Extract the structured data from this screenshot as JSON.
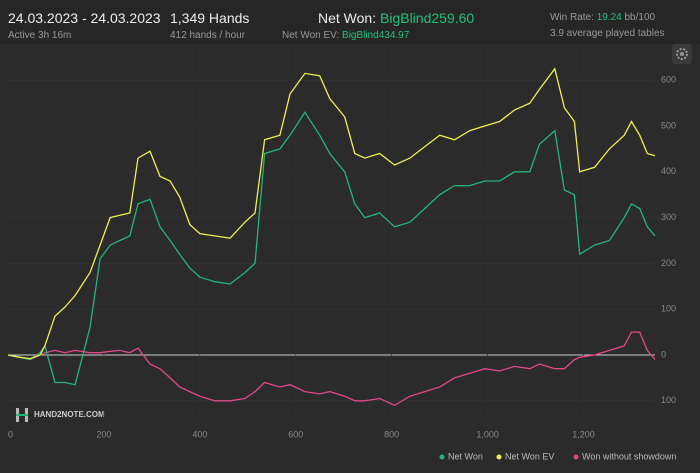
{
  "header": {
    "date_range": "24.03.2023 - 24.03.2023",
    "active": "Active 3h 16m",
    "hands": "1,349 Hands",
    "rate": "412 hands / hour",
    "net_won_label": "Net Won:",
    "net_won_value": "BigBlind259.60",
    "net_won_ev_label": "Net Won  EV:",
    "net_won_ev_value": "BigBlind434.97",
    "win_rate_label": "Win Rate:",
    "win_rate_value": "19.24",
    "win_rate_unit": "bb/100",
    "tables": "3.9 average played tables",
    "watermark": "HAND2NOTE.COM"
  },
  "chart_data": {
    "type": "line",
    "x": [
      0,
      25,
      46,
      67,
      77,
      98,
      119,
      140,
      171,
      192,
      213,
      233,
      254,
      271,
      296,
      317,
      338,
      358,
      379,
      400,
      431,
      463,
      494,
      515,
      535,
      567,
      588,
      619,
      650,
      671,
      702,
      723,
      744,
      775,
      806,
      838,
      869,
      900,
      931,
      963,
      994,
      1025,
      1056,
      1088,
      1108,
      1140,
      1160,
      1181,
      1192,
      1223,
      1254,
      1285,
      1300,
      1317,
      1333,
      1349
    ],
    "series": [
      {
        "name": "Net Won",
        "color": "#22b67a",
        "values": [
          0,
          -5,
          -10,
          5,
          20,
          -60,
          -60,
          -65,
          60,
          210,
          240,
          250,
          260,
          330,
          340,
          280,
          250,
          220,
          190,
          170,
          160,
          155,
          180,
          200,
          440,
          450,
          480,
          530,
          480,
          440,
          400,
          330,
          300,
          310,
          280,
          290,
          320,
          350,
          370,
          370,
          380,
          380,
          400,
          400,
          460,
          490,
          360,
          350,
          220,
          240,
          250,
          300,
          330,
          320,
          280,
          260
        ]
      },
      {
        "name": "Net Won  EV",
        "color": "#eeee55",
        "values": [
          0,
          -5,
          -8,
          0,
          20,
          85,
          105,
          130,
          180,
          240,
          300,
          305,
          310,
          430,
          445,
          390,
          380,
          345,
          285,
          265,
          260,
          255,
          290,
          310,
          470,
          480,
          570,
          615,
          610,
          560,
          520,
          440,
          430,
          440,
          415,
          430,
          455,
          480,
          470,
          490,
          500,
          510,
          535,
          550,
          580,
          625,
          540,
          510,
          400,
          410,
          450,
          480,
          510,
          480,
          440,
          435
        ]
      },
      {
        "name": "Won without showdown",
        "color": "#e0488a",
        "values": [
          0,
          -5,
          -10,
          0,
          5,
          10,
          5,
          10,
          5,
          5,
          8,
          10,
          5,
          15,
          -20,
          -30,
          -50,
          -70,
          -80,
          -90,
          -100,
          -100,
          -95,
          -80,
          -60,
          -70,
          -65,
          -80,
          -85,
          -80,
          -90,
          -100,
          -100,
          -95,
          -110,
          -90,
          -80,
          -70,
          -50,
          -40,
          -30,
          -35,
          -25,
          -30,
          -20,
          -30,
          -30,
          -10,
          -5,
          0,
          10,
          20,
          50,
          50,
          10,
          -10
        ]
      }
    ],
    "xlim": [
      0,
      1349
    ],
    "ylim": [
      -142,
      677
    ],
    "xticks": [
      0,
      200,
      400,
      600,
      800,
      {
        "value": 1000,
        "label": "1,000"
      },
      {
        "value": 1200,
        "label": "1,200"
      }
    ],
    "yticks": [
      {
        "value": -100,
        "label": "100"
      },
      0,
      100,
      200,
      300,
      400,
      500,
      600
    ],
    "grid": true,
    "legend": "bottom-right"
  }
}
